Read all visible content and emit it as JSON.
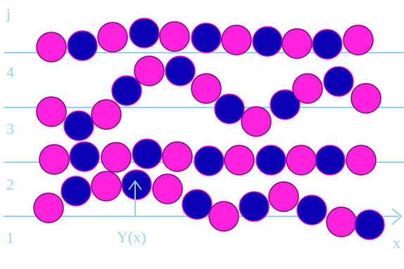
{
  "axis_labels": {
    "j": "j",
    "x": "x",
    "y_of_x": "Y(x)"
  },
  "row_labels": [
    "1",
    "2",
    "3",
    "4"
  ],
  "colors": {
    "line": "#8fd0f4",
    "text": "#9ad3f3",
    "magenta": "#ff22dd",
    "magenta_stroke": "#7a0080",
    "blue": "#0b00b4",
    "blue_stroke": "#e600d2"
  },
  "chains": [
    {
      "name": "chain-row-1",
      "balls": [
        "magenta",
        "blue",
        "magenta",
        "blue",
        "magenta",
        "blue",
        "magenta",
        "blue",
        "magenta",
        "blue",
        "magenta",
        "blue"
      ]
    },
    {
      "name": "chain-row-2",
      "balls": [
        "magenta",
        "blue",
        "magenta",
        "blue",
        "magenta",
        "blue",
        "magenta",
        "blue",
        "magenta",
        "blue",
        "magenta"
      ]
    },
    {
      "name": "chain-row-3",
      "balls": [
        "magenta",
        "blue",
        "magenta",
        "blue",
        "magenta",
        "blue",
        "magenta",
        "blue",
        "magenta",
        "blue",
        "magenta",
        "blue",
        "magenta"
      ]
    },
    {
      "name": "chain-row-4",
      "balls": [
        "magenta",
        "blue",
        "magenta",
        "blue",
        "magenta",
        "blue",
        "magenta",
        "blue",
        "magenta",
        "blue",
        "magenta"
      ]
    }
  ]
}
